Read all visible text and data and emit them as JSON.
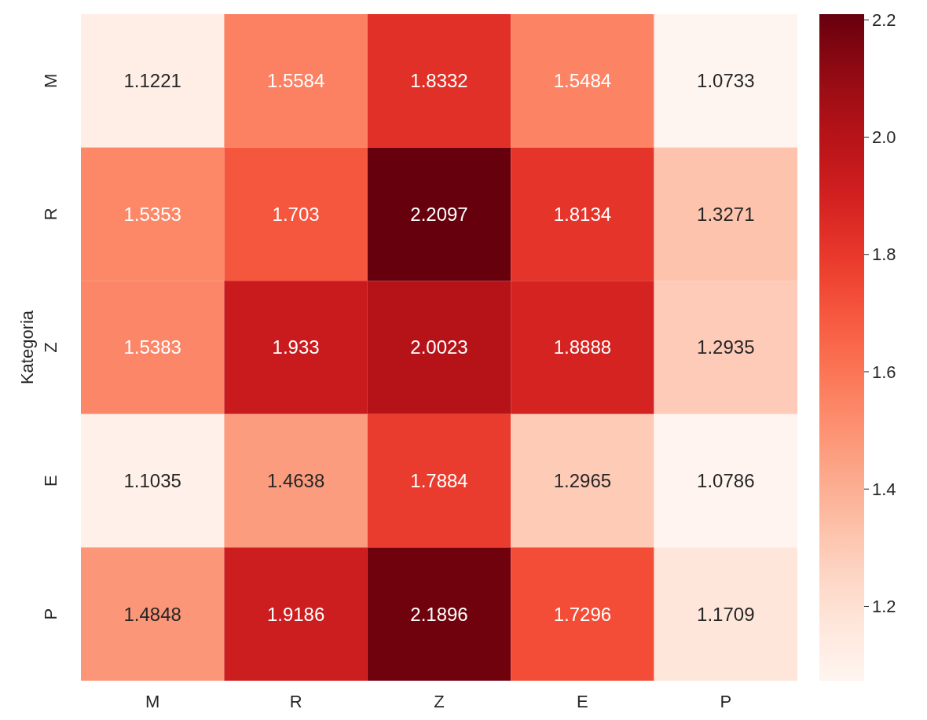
{
  "chart_data": {
    "type": "heatmap",
    "ylabel": "Kategoria",
    "categories": [
      "M",
      "R",
      "Z",
      "E",
      "P"
    ],
    "y_categories": [
      "M",
      "R",
      "Z",
      "E",
      "P"
    ],
    "cells": [
      [
        1.1221,
        1.5584,
        1.8332,
        1.5484,
        1.0733
      ],
      [
        1.5353,
        1.703,
        2.2097,
        1.8134,
        1.3271
      ],
      [
        1.5383,
        1.933,
        2.0023,
        1.8888,
        1.2935
      ],
      [
        1.1035,
        1.4638,
        1.7884,
        1.2965,
        1.0786
      ],
      [
        1.4848,
        1.9186,
        2.1896,
        1.7296,
        1.1709
      ]
    ],
    "data_labels": true,
    "clim": [
      1.0733,
      2.2097
    ],
    "cticks": [
      1.2,
      1.4,
      1.6,
      1.8,
      {
        "value": 2.0,
        "label": "2.0"
      },
      2.2
    ]
  }
}
